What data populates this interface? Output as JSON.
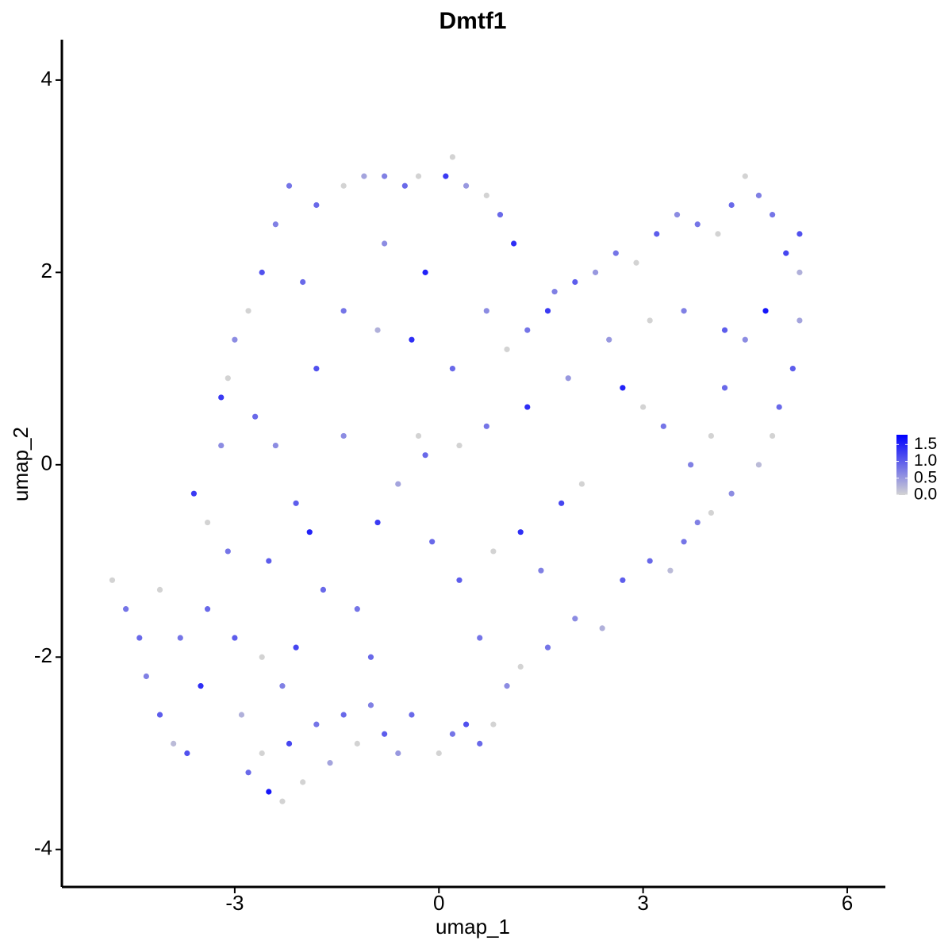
{
  "chart_data": {
    "type": "scatter",
    "title": "Dmtf1",
    "x_label": "umap_1",
    "y_label": "umap_2",
    "x": [
      -4.8,
      -4.6,
      -4.4,
      -4.3,
      -4.1,
      -3.9,
      -3.7,
      -3.5,
      -3.4,
      -3.6,
      -3.4,
      -3.2,
      -3.1,
      -3.0,
      -2.9,
      -2.8,
      -2.6,
      -2.5,
      -2.3,
      -2.2,
      -2.0,
      -1.8,
      -1.6,
      -1.4,
      -1.2,
      -1.0,
      -0.8,
      -0.6,
      -0.4,
      0.0,
      0.2,
      0.4,
      0.6,
      0.8,
      1.0,
      1.2,
      1.6,
      2.0,
      2.4,
      2.7,
      3.1,
      3.4,
      3.6,
      3.8,
      4.0,
      4.3,
      4.7,
      4.9,
      5.0,
      5.2,
      5.3,
      5.3,
      5.3,
      5.1,
      4.9,
      4.7,
      4.5,
      4.3,
      4.1,
      3.8,
      3.5,
      3.2,
      2.9,
      2.6,
      2.3,
      2.0,
      1.7,
      1.6,
      1.3,
      1.0,
      0.7,
      0.9,
      1.1,
      0.7,
      0.4,
      0.2,
      0.1,
      -0.3,
      -0.5,
      -0.8,
      -1.1,
      -1.4,
      -1.8,
      -2.2,
      -2.4,
      -2.6,
      -2.8,
      -3.0,
      -3.1,
      -3.2,
      -2.7,
      -2.4,
      -2.1,
      -1.9,
      -1.7,
      -2.1,
      -2.3,
      -2.6,
      -1.2,
      -0.9,
      -0.6,
      -0.3,
      -0.1,
      0.3,
      0.6,
      0.8,
      1.2,
      1.5,
      1.8,
      2.1,
      1.3,
      1.9,
      2.7,
      3.0,
      3.3,
      3.7,
      4.0,
      4.2,
      4.5,
      4.8,
      4.2,
      3.6,
      3.1,
      2.5,
      -1.8,
      -1.4,
      -0.9,
      -0.4,
      0.2,
      -0.2,
      0.3,
      0.7,
      -1.4,
      -2.0,
      -0.8,
      -0.2,
      -2.5,
      -3.8,
      -4.1,
      -1.0
    ],
    "values": [
      -1.2,
      -1.5,
      -1.8,
      -2.2,
      -2.6,
      -2.9,
      -3.0,
      -2.3,
      -1.5,
      -0.3,
      -0.6,
      0.2,
      -0.9,
      -1.8,
      -2.6,
      -3.2,
      -3.0,
      -3.4,
      -3.5,
      -2.9,
      -3.3,
      -2.7,
      -3.1,
      -2.6,
      -2.9,
      -2.5,
      -2.8,
      -3.0,
      -2.6,
      -3.0,
      -2.8,
      -2.7,
      -2.9,
      -2.7,
      -2.3,
      -2.1,
      -1.9,
      -1.6,
      -1.7,
      -1.2,
      -1.0,
      -1.1,
      -0.8,
      -0.6,
      -0.5,
      -0.3,
      0.0,
      0.3,
      0.6,
      1.0,
      1.5,
      2.0,
      2.4,
      2.2,
      2.6,
      2.8,
      3.0,
      2.7,
      2.4,
      2.5,
      2.6,
      2.4,
      2.1,
      2.2,
      2.0,
      1.9,
      1.8,
      1.6,
      1.4,
      1.2,
      1.6,
      2.6,
      2.3,
      2.8,
      2.9,
      3.2,
      3.0,
      3.0,
      2.9,
      3.0,
      3.0,
      2.9,
      2.7,
      2.9,
      2.5,
      2.0,
      1.6,
      1.3,
      0.9,
      0.7,
      0.5,
      0.2,
      -0.4,
      -0.7,
      -1.3,
      -1.9,
      -2.3,
      -2.0,
      -1.5,
      -0.6,
      -0.2,
      0.3,
      -0.8,
      -1.2,
      -1.8,
      -0.9,
      -0.7,
      -1.1,
      -0.4,
      -0.2,
      0.6,
      0.9,
      0.8,
      0.6,
      0.4,
      0.0,
      0.3,
      0.8,
      1.3,
      1.6,
      1.4,
      1.6,
      1.5,
      1.3,
      1.0,
      1.6,
      1.4,
      1.3,
      1.0,
      0.1,
      0.2,
      0.4,
      0.3,
      1.9,
      2.3,
      2.0,
      -1.0,
      -1.8,
      -1.3,
      -2.0
    ],
    "expression": [
      0,
      0.8,
      0.9,
      0.7,
      1.0,
      0.2,
      1.1,
      1.4,
      0.9,
      1.3,
      0,
      0.6,
      0.8,
      1.0,
      0.3,
      0.9,
      0,
      1.6,
      0,
      1.2,
      0,
      0.8,
      0.4,
      0.9,
      0,
      0.7,
      1.0,
      0.5,
      0.9,
      0,
      0.8,
      1.1,
      0.9,
      0,
      0.6,
      0,
      0.8,
      0.6,
      0.3,
      1.0,
      0.9,
      0.2,
      0.8,
      0.7,
      0,
      0.6,
      0.2,
      0,
      0.9,
      1.0,
      0.4,
      0.3,
      1.1,
      1.2,
      0.8,
      0.7,
      0,
      0.9,
      0,
      0.8,
      0.6,
      1.0,
      0,
      0.8,
      0.5,
      1.0,
      0.7,
      1.3,
      0.8,
      0,
      0.6,
      0.9,
      1.4,
      0,
      0.5,
      0,
      1.3,
      0,
      0.9,
      0.7,
      0.4,
      0,
      0.9,
      0.8,
      0.7,
      1.1,
      0,
      0.6,
      0,
      1.3,
      0.9,
      0.6,
      1.0,
      1.5,
      0.9,
      1.2,
      0.7,
      0,
      0.8,
      1.3,
      0.4,
      0,
      0.9,
      1.0,
      0.8,
      0,
      1.4,
      0.7,
      1.2,
      0,
      1.4,
      0.5,
      1.5,
      0,
      0.8,
      0.7,
      0,
      0.9,
      0.6,
      1.6,
      1.0,
      0.7,
      0,
      0.5,
      1.1,
      0.8,
      0.3,
      1.4,
      0.9,
      0.9,
      0,
      0.8,
      0.6,
      0.9,
      0.6,
      1.5,
      1.0,
      0.8,
      0,
      0.9
    ],
    "xlim": [
      -5.54,
      6.56
    ],
    "xticks": [
      -3,
      0,
      3,
      6
    ],
    "ylim": [
      -4.39,
      4.42
    ],
    "yticks": [
      -4,
      -2,
      0,
      2,
      4
    ],
    "colorbar": {
      "lim": [
        0,
        1.79
      ],
      "low": "#d3d3d3",
      "high": "#0000ff",
      "ticks": [
        {
          "value": 0,
          "label": "0.0"
        },
        0.5,
        {
          "value": 1,
          "label": "1.0"
        },
        1.5
      ]
    }
  }
}
